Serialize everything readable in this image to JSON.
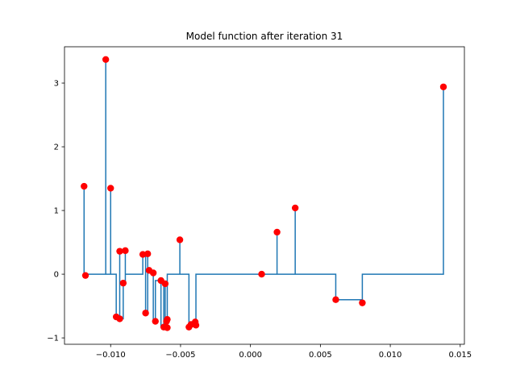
{
  "chart_data": {
    "type": "scatter",
    "title": "Model function after iteration 31",
    "xlabel": "",
    "ylabel": "",
    "xlim": [
      -0.0133,
      0.0153
    ],
    "ylim": [
      -1.1,
      3.57
    ],
    "grid": false,
    "legend": null,
    "xticks": [
      -0.01,
      -0.005,
      0.0,
      0.005,
      0.01,
      0.015
    ],
    "xtick_labels": [
      "−0.010",
      "−0.005",
      "0.000",
      "0.005",
      "0.010",
      "0.015"
    ],
    "yticks": [
      -1,
      0,
      1,
      2,
      3
    ],
    "ytick_labels": [
      "−1",
      "0",
      "1",
      "2",
      "3"
    ],
    "points": {
      "x": [
        -0.0119,
        -0.0118,
        -0.01035,
        -0.01,
        -0.0096,
        -0.00935,
        -0.00935,
        -0.0091,
        -0.00895,
        -0.0077,
        -0.0075,
        -0.00735,
        -0.00725,
        -0.00695,
        -0.0068,
        -0.0064,
        -0.0062,
        -0.0061,
        -0.006,
        -0.00595,
        -0.00595,
        -0.00505,
        -0.0044,
        -0.00425,
        -0.00395,
        -0.0039,
        0.0008,
        0.0019,
        0.0032,
        0.0061,
        0.008,
        0.0138
      ],
      "y": [
        1.38,
        -0.02,
        3.37,
        1.35,
        -0.67,
        0.36,
        -0.7,
        -0.14,
        0.37,
        0.31,
        -0.61,
        0.32,
        0.06,
        0.02,
        -0.74,
        -0.1,
        -0.83,
        -0.15,
        -0.74,
        -0.84,
        -0.71,
        0.54,
        -0.83,
        -0.79,
        -0.75,
        -0.8,
        0.0,
        0.66,
        1.04,
        -0.4,
        -0.45,
        2.94
      ]
    },
    "step_line": {
      "x": [
        -0.0119,
        -0.0119,
        -0.0118,
        -0.0118,
        -0.01035,
        -0.01035,
        -0.01035,
        -0.01,
        -0.01,
        -0.01,
        -0.0096,
        -0.0096,
        -0.00935,
        -0.00935,
        -0.00935,
        -0.00935,
        -0.0091,
        -0.0091,
        -0.00895,
        -0.00895,
        -0.00895,
        -0.0077,
        -0.0077,
        -0.0075,
        -0.0075,
        -0.00735,
        -0.00735,
        -0.00735,
        -0.00725,
        -0.00725,
        -0.00695,
        -0.00695,
        -0.0068,
        -0.0068,
        -0.0064,
        -0.0064,
        -0.0062,
        -0.0062,
        -0.0061,
        -0.0061,
        -0.006,
        -0.006,
        -0.00595,
        -0.00595,
        -0.00505,
        -0.00505,
        -0.00505,
        -0.0044,
        -0.0044,
        -0.00425,
        -0.00425,
        -0.00395,
        -0.00395,
        -0.0039,
        -0.0039,
        0.0019,
        0.0019,
        0.0019,
        0.0032,
        0.0032,
        0.0032,
        0.0061,
        0.0061,
        0.008,
        0.008,
        0.0138,
        0.0138
      ],
      "y": [
        1.38,
        0.0,
        0.0,
        0.0,
        0.0,
        3.37,
        0.0,
        0.0,
        1.35,
        0.0,
        0.0,
        -0.67,
        -0.67,
        0.36,
        0.0,
        -0.7,
        -0.7,
        -0.14,
        -0.14,
        0.37,
        0.0,
        0.0,
        0.31,
        0.31,
        -0.61,
        -0.61,
        0.32,
        0.06,
        0.06,
        0.02,
        0.02,
        -0.74,
        -0.74,
        -0.1,
        -0.1,
        -0.83,
        -0.83,
        -0.15,
        -0.15,
        -0.74,
        -0.74,
        -0.84,
        -0.84,
        0.0,
        0.0,
        0.54,
        0.0,
        0.0,
        -0.83,
        -0.83,
        -0.79,
        -0.79,
        -0.75,
        -0.75,
        0.0,
        0.0,
        0.66,
        0.0,
        0.0,
        1.04,
        0.0,
        0.0,
        -0.4,
        -0.4,
        0.0,
        0.0,
        2.94
      ]
    },
    "colors": {
      "line": "#1f77b4",
      "points": "#ff0000",
      "axes": "#000000",
      "background": "#ffffff"
    }
  }
}
